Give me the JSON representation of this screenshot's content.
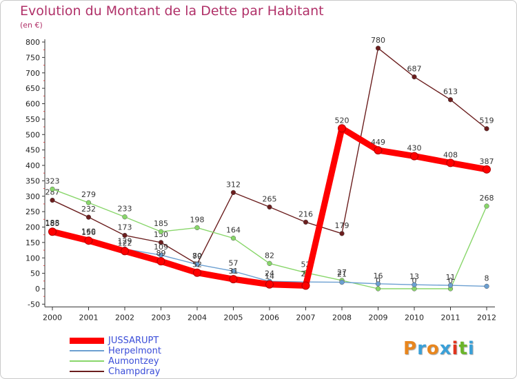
{
  "header": {
    "title": "Evolution du Montant de la Dette par Habitant",
    "unit": "(en €)"
  },
  "logo": {
    "text": "Proxiti",
    "colors": [
      "#e8861e",
      "#3aa0d8",
      "#e8861e",
      "#3aa0d8",
      "#e0341e",
      "#6bb52a",
      "#3aa0d8"
    ]
  },
  "chart_data": {
    "type": "line",
    "x": [
      "2000",
      "2001",
      "2002",
      "2003",
      "2004",
      "2005",
      "2006",
      "2007",
      "2008",
      "2009",
      "2010",
      "2011",
      "2012"
    ],
    "ylim": [
      -50,
      800
    ],
    "yticks": [
      -50,
      0,
      50,
      100,
      150,
      200,
      250,
      300,
      350,
      400,
      450,
      500,
      550,
      600,
      650,
      700,
      750,
      800
    ],
    "grid": false,
    "legend_position": "bottom-left",
    "series": [
      {
        "name": "Champdray",
        "color": "#6b1e1e",
        "values": [
          287,
          232,
          173,
          150,
          80,
          312,
          265,
          216,
          179,
          780,
          687,
          613,
          519
        ],
        "labels": [
          "287",
          "232",
          "173",
          "150",
          "80",
          "312",
          "265",
          "216",
          "179",
          "780",
          "687",
          "613",
          "519"
        ]
      },
      {
        "name": "Aumontzey",
        "color": "#88d66a",
        "values": [
          323,
          279,
          233,
          185,
          198,
          164,
          82,
          52,
          27,
          0,
          0,
          0,
          268
        ],
        "labels": [
          "323",
          "279",
          "233",
          "185",
          "198",
          "164",
          "82",
          "52",
          "27",
          "0",
          "0",
          "0",
          "268"
        ]
      },
      {
        "name": "Herpelmont",
        "color": "#6b9fd1",
        "values": [
          188,
          160,
          129,
          109,
          79,
          57,
          24,
          22,
          21,
          16,
          13,
          11,
          8
        ],
        "labels": [
          "188",
          "160",
          "129",
          "109",
          "79",
          "57",
          "24",
          "22",
          "21",
          "16",
          "13",
          "11",
          "8"
        ]
      },
      {
        "name": "JUSSARUPT",
        "color": "#ff0000",
        "values": [
          185,
          156,
          122,
          89,
          52,
          31,
          14,
          10,
          520,
          449,
          430,
          408,
          387
        ],
        "labels": [
          "185",
          "156",
          "122",
          "89",
          "52",
          "31",
          "14",
          "",
          "520",
          "449",
          "430",
          "408",
          "387"
        ]
      }
    ],
    "legend": [
      {
        "name": "JUSSARUPT",
        "color": "#ff0000"
      },
      {
        "name": "Herpelmont",
        "color": "#6b9fd1"
      },
      {
        "name": "Aumontzey",
        "color": "#88d66a"
      },
      {
        "name": "Champdray",
        "color": "#6b1e1e"
      }
    ]
  }
}
